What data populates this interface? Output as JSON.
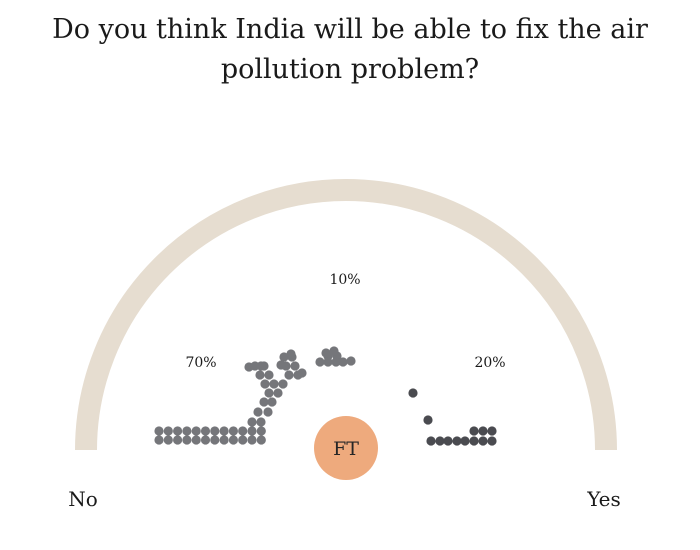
{
  "title": "Do you think India will be able to fix the air pollution problem?",
  "chart_data": {
    "type": "dot-gauge",
    "title": "Do you think India will be able to fix the air pollution problem?",
    "scale_start_label": "No",
    "scale_end_label": "Yes",
    "series": [
      {
        "label": "70%",
        "value": 70,
        "color": "#75767a"
      },
      {
        "label": "10%",
        "value": 10,
        "color": "#75767a"
      },
      {
        "label": "20%",
        "value": 20,
        "color": "#4a4b50"
      }
    ]
  },
  "logo": {
    "text": "FT"
  },
  "colors": {
    "arc": "#e6ddd0",
    "dots_main": "#75767a",
    "dots_yes": "#4a4b50",
    "logo_fill": "#eeaa7d",
    "background": "#ffffff"
  }
}
